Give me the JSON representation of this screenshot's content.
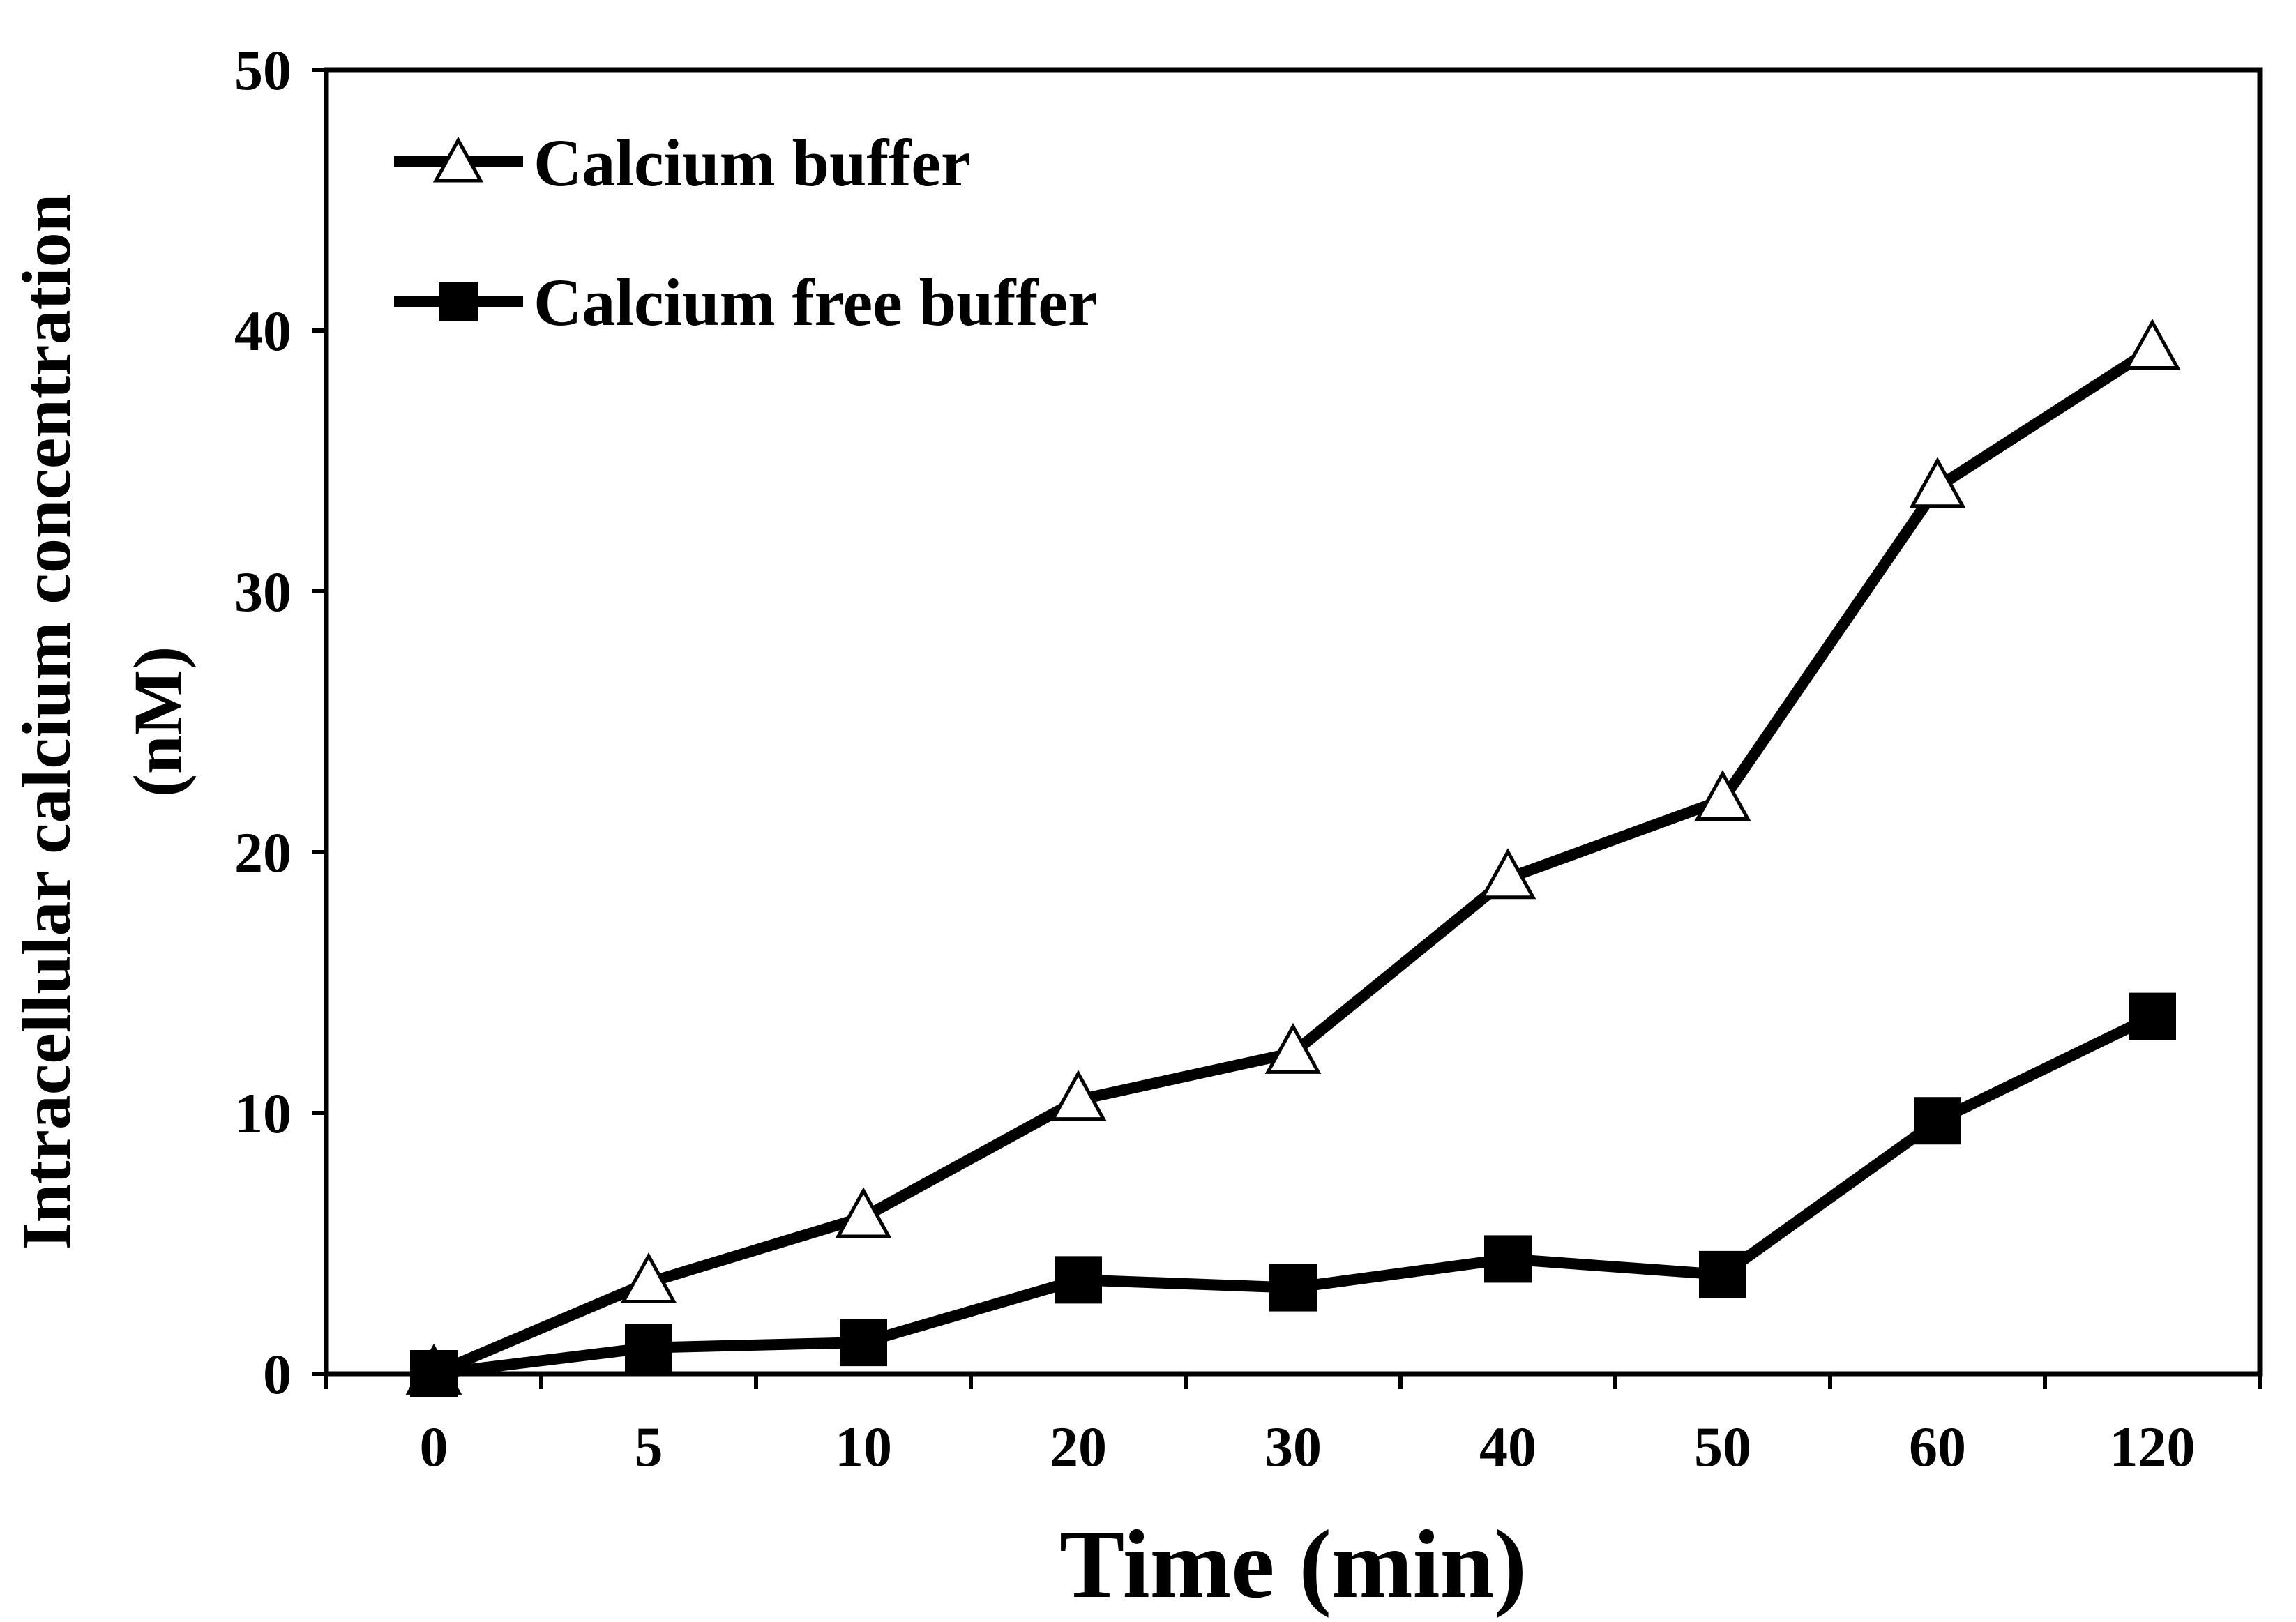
{
  "chart_data": {
    "type": "line",
    "title": "",
    "xlabel": "Time (min)",
    "ylabel_line1": "Intracellular calcium concentration",
    "ylabel_line2": "(nM)",
    "ylim": [
      0,
      50
    ],
    "yticks": [
      "0",
      "10",
      "20",
      "30",
      "40",
      "50"
    ],
    "categories": [
      "0",
      "5",
      "10",
      "20",
      "30",
      "40",
      "50",
      "60",
      "120"
    ],
    "grid": false,
    "legend_position": "top-left",
    "series": [
      {
        "name": "Calcium buffer",
        "marker": "triangle-open",
        "color": "#000000",
        "values": [
          0,
          3.5,
          6,
          10.5,
          12.3,
          19,
          22,
          34,
          39.3
        ]
      },
      {
        "name": "Calcium free buffer",
        "marker": "square-filled",
        "color": "#000000",
        "values": [
          0,
          1,
          1.2,
          3.6,
          3.3,
          4.4,
          3.8,
          9.7,
          13.7
        ]
      }
    ]
  }
}
